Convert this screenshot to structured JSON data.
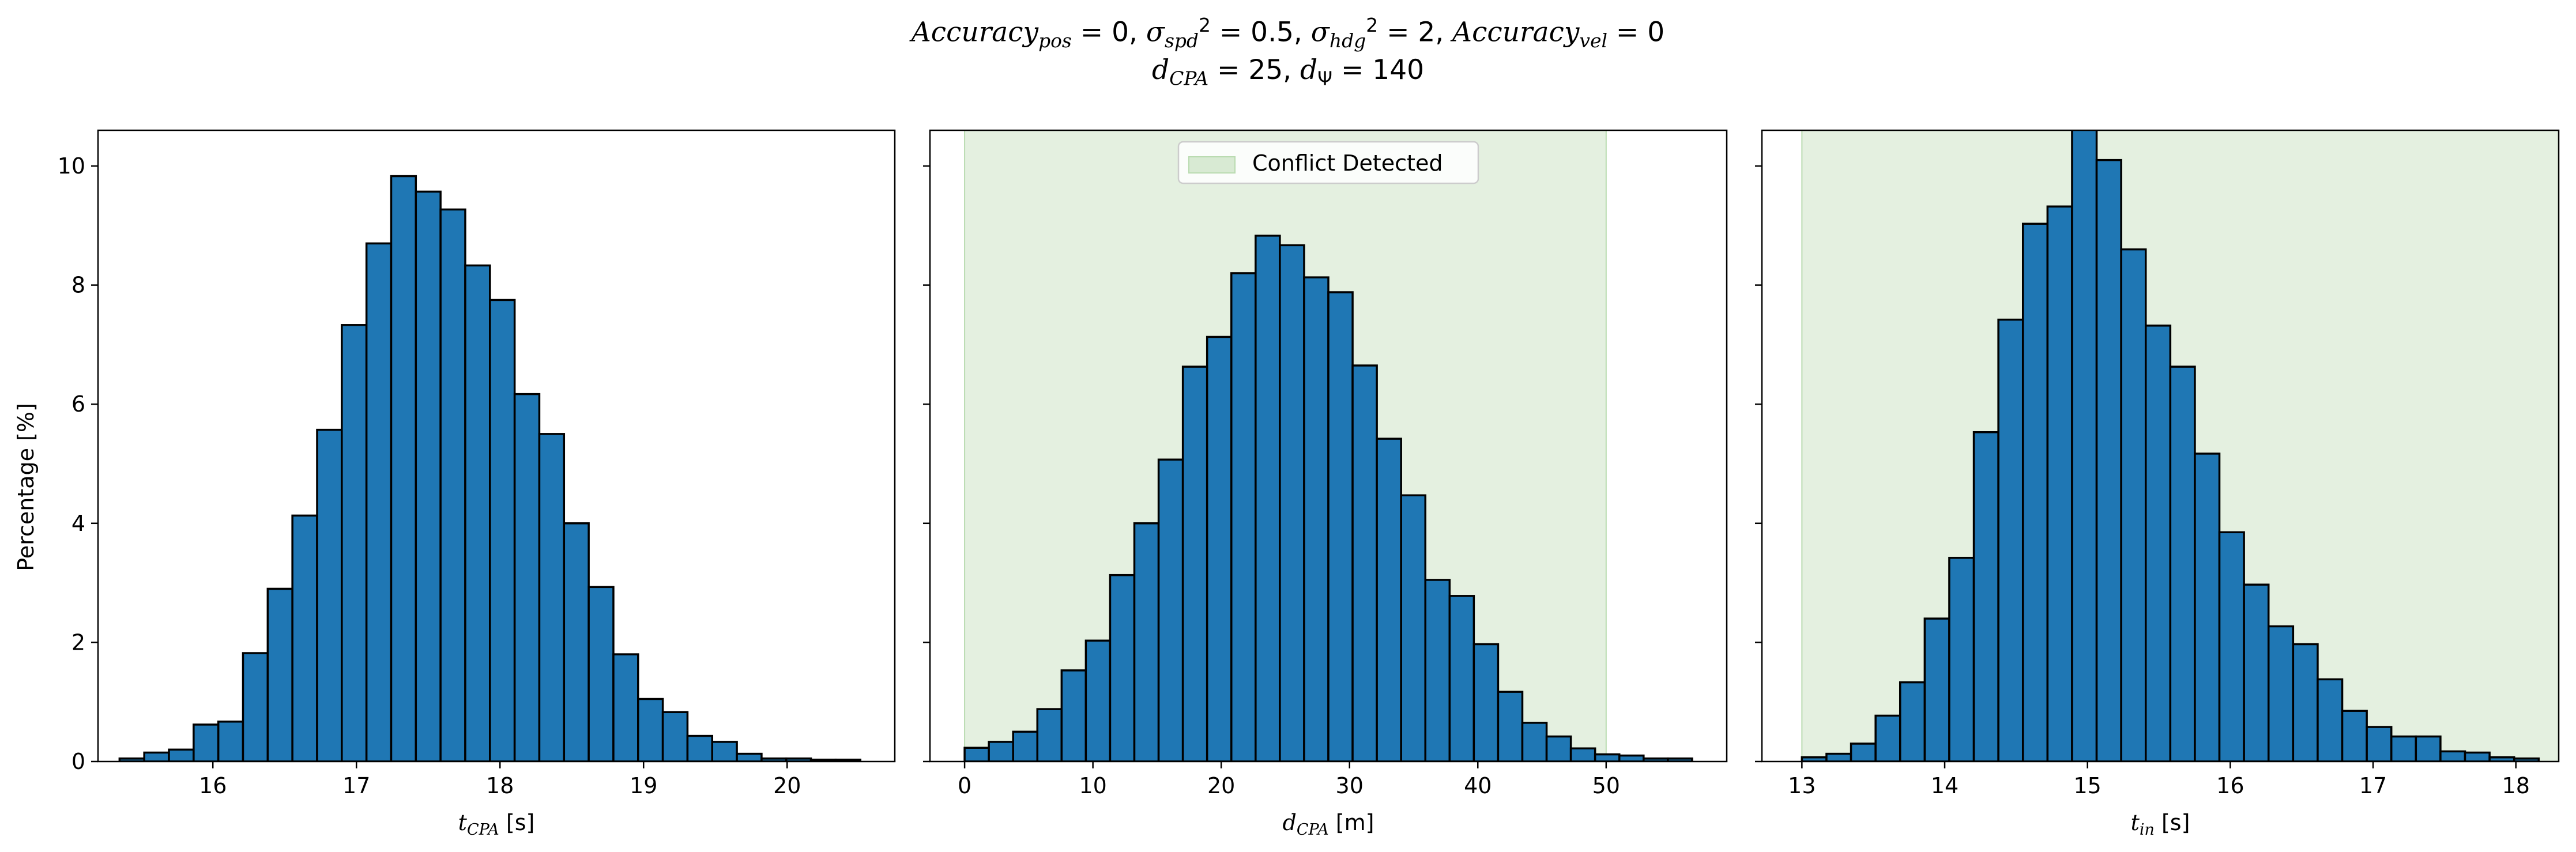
{
  "figure": {
    "title_line1_parts": [
      "Accuracy",
      "pos",
      " = 0, ",
      "σ",
      "spd",
      "2",
      " = 0.5, ",
      "σ",
      "hdg",
      "2",
      " = 2, ",
      "Accuracy",
      "vel",
      " = 0"
    ],
    "title_line2_parts": [
      "d",
      "CPA",
      " = 25, ",
      "d",
      "Ψ",
      " = 140"
    ],
    "ylabel": "Percentage [%]",
    "legend_label": "Conflict Detected"
  },
  "colors": {
    "bar_fill": "#1f77b4",
    "bar_edge": "#000000",
    "conflict_region": "#d8ead3"
  },
  "chart_data": [
    {
      "type": "bar",
      "subplot": 1,
      "xlabel": {
        "sym": "t",
        "sub": "CPA",
        "unit": " [s]"
      },
      "ylabel": "Percentage [%]",
      "xlim": [
        15.2,
        20.75
      ],
      "ylim": [
        0,
        10.6
      ],
      "xticks": [
        16,
        17,
        18,
        19,
        20
      ],
      "yticks": [
        0,
        2,
        4,
        6,
        8,
        10
      ],
      "bin_start": 15.35,
      "bin_width": 0.172,
      "values": [
        0.05,
        0.15,
        0.2,
        0.62,
        0.67,
        1.82,
        2.9,
        4.13,
        5.57,
        7.33,
        8.7,
        9.83,
        9.57,
        9.27,
        8.33,
        7.75,
        6.17,
        5.5,
        4.0,
        2.93,
        1.8,
        1.05,
        0.83,
        0.43,
        0.33,
        0.13,
        0.05,
        0.05,
        0.03,
        0.03
      ],
      "conflict_region": null,
      "legend": null
    },
    {
      "type": "bar",
      "subplot": 2,
      "xlabel": {
        "sym": "d",
        "sub": "CPA",
        "unit": " [m]"
      },
      "xlim": [
        -2.7,
        59.4
      ],
      "ylim": [
        0,
        10.6
      ],
      "xticks": [
        0,
        10,
        20,
        30,
        40,
        50
      ],
      "yticks": [
        0,
        2,
        4,
        6,
        8,
        10
      ],
      "bin_start": 0,
      "bin_width": 1.89,
      "values": [
        0.23,
        0.33,
        0.5,
        0.88,
        1.53,
        2.03,
        3.13,
        4.0,
        5.07,
        6.63,
        7.13,
        8.2,
        8.83,
        8.67,
        8.13,
        7.88,
        6.65,
        5.42,
        4.47,
        3.05,
        2.78,
        1.97,
        1.17,
        0.65,
        0.42,
        0.22,
        0.12,
        0.1,
        0.05,
        0.05
      ],
      "conflict_region": [
        0,
        50
      ],
      "legend": {
        "label": "Conflict Detected",
        "placement": "upper center"
      }
    },
    {
      "type": "bar",
      "subplot": 3,
      "xlabel": {
        "sym": "t",
        "sub": "in",
        "unit": " [s]"
      },
      "xlim": [
        12.72,
        18.3
      ],
      "ylim": [
        0,
        10.6
      ],
      "xticks": [
        13,
        14,
        15,
        16,
        17,
        18
      ],
      "yticks": [
        0,
        2,
        4,
        6,
        8,
        10
      ],
      "bin_start": 13.0,
      "bin_width": 0.172,
      "values": [
        0.07,
        0.13,
        0.3,
        0.77,
        1.33,
        2.4,
        3.42,
        5.53,
        7.42,
        9.03,
        9.32,
        10.78,
        10.1,
        8.6,
        7.32,
        6.63,
        5.17,
        3.85,
        2.97,
        2.27,
        1.97,
        1.38,
        0.85,
        0.58,
        0.42,
        0.42,
        0.17,
        0.15,
        0.07,
        0.05
      ],
      "conflict_region": [
        13.0,
        20
      ],
      "legend": null
    }
  ]
}
